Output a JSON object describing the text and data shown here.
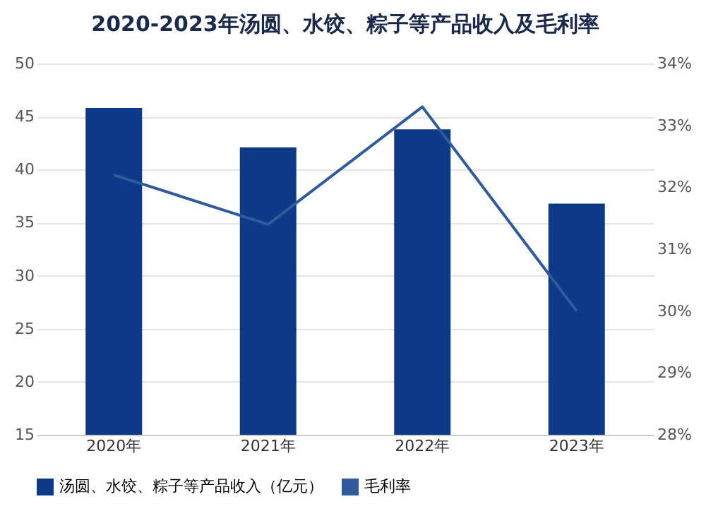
{
  "chart_data": {
    "type": "bar",
    "title": "2020-2023年汤圆、水饺、粽子等产品收入及毛利率",
    "categories": [
      "2020年",
      "2021年",
      "2022年",
      "2023年"
    ],
    "series": [
      {
        "name": "汤圆、水饺、粽子等产品收入（亿元）",
        "color": "#0d3a86",
        "values": [
          45.8,
          42.1,
          43.8,
          36.8
        ]
      },
      {
        "name": "毛利率",
        "type": "line",
        "axis": "y2",
        "color": "#2f5a9e",
        "values": [
          32.2,
          31.4,
          33.3,
          30.0
        ]
      }
    ],
    "ylim": [
      15,
      50
    ],
    "yticks": [
      15,
      20,
      25,
      30,
      35,
      40,
      45,
      50
    ],
    "y2lim": [
      28,
      34
    ],
    "y2ticks": [
      {
        "value": 28,
        "label": "28%"
      },
      {
        "value": 29,
        "label": "29%"
      },
      {
        "value": 30,
        "label": "30%"
      },
      {
        "value": 31,
        "label": "31%"
      },
      {
        "value": 32,
        "label": "32%"
      },
      {
        "value": 33,
        "label": "33%"
      },
      {
        "value": 34,
        "label": "34%"
      }
    ],
    "grid": "y",
    "legend": "bottom",
    "line_style": "solid",
    "marker": "none"
  }
}
